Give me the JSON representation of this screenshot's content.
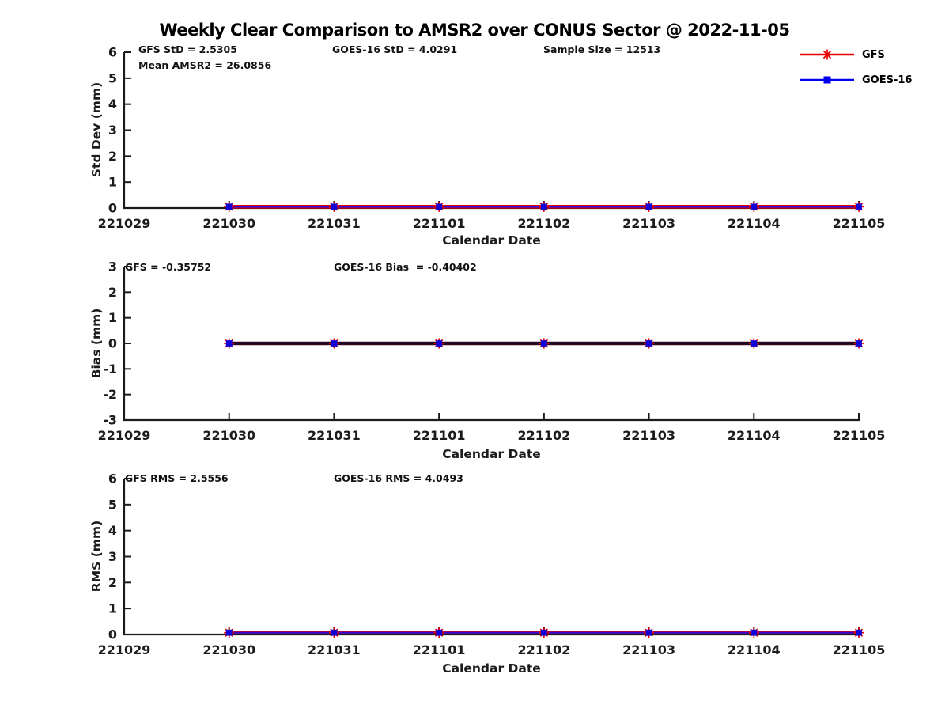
{
  "title": "Weekly Clear Comparison to AMSR2 over CONUS Sector @ 2022-11-05",
  "legend": {
    "position": "top-right",
    "items": [
      {
        "label": "GFS",
        "color": "#e80000",
        "marker": "asterisk"
      },
      {
        "label": "GOES-16",
        "color": "#0000ee",
        "marker": "square"
      }
    ]
  },
  "chart_data": {
    "type": "line",
    "xlabel": "Calendar Date",
    "x_categories": [
      "221029",
      "221030",
      "221031",
      "221101",
      "221102",
      "221103",
      "221104",
      "221105"
    ],
    "grid": false,
    "charts": [
      {
        "name": "std_dev",
        "ylabel": "Std Dev (mm)",
        "ylim": [
          0,
          6
        ],
        "yticks": [
          0,
          1,
          2,
          3,
          4,
          5,
          6
        ],
        "annotations": [
          {
            "text": "GFS StD = 2.5305"
          },
          {
            "text": "GOES-16 StD = 4.0291"
          },
          {
            "text": "Sample Size = 12513"
          },
          {
            "text": "Mean AMSR2 = 26.0856"
          }
        ],
        "line_colors": {
          "under": "#e80000",
          "over": "#2b08dc"
        },
        "series": [
          {
            "name": "GFS",
            "x": [
              "221030",
              "221031",
              "221101",
              "221102",
              "221103",
              "221104",
              "221105"
            ],
            "values": [
              0.05,
              0.05,
              0.05,
              0.05,
              0.05,
              0.05,
              0.05
            ]
          },
          {
            "name": "GOES-16",
            "x": [
              "221030",
              "221031",
              "221101",
              "221102",
              "221103",
              "221104",
              "221105"
            ],
            "values": [
              0.05,
              0.05,
              0.05,
              0.05,
              0.05,
              0.05,
              0.05
            ]
          }
        ]
      },
      {
        "name": "bias",
        "ylabel": "Bias (mm)",
        "ylim": [
          -3,
          3
        ],
        "yticks": [
          -3,
          -2,
          -1,
          0,
          1,
          2,
          3
        ],
        "annotations": [
          {
            "text": "GFS = -0.35752"
          },
          {
            "text": "GOES-16 Bias  = -0.40402"
          }
        ],
        "line_colors": {
          "under": "#3a0a20",
          "over": "#140828"
        },
        "series": [
          {
            "name": "GFS",
            "x": [
              "221030",
              "221031",
              "221101",
              "221102",
              "221103",
              "221104",
              "221105"
            ],
            "values": [
              0,
              0,
              0,
              0,
              0,
              0,
              0
            ]
          },
          {
            "name": "GOES-16",
            "x": [
              "221030",
              "221031",
              "221101",
              "221102",
              "221103",
              "221104",
              "221105"
            ],
            "values": [
              0,
              0,
              0,
              0,
              0,
              0,
              0
            ]
          }
        ]
      },
      {
        "name": "rms",
        "ylabel": "RMS (mm)",
        "ylim": [
          0,
          6
        ],
        "yticks": [
          0,
          1,
          2,
          3,
          4,
          5,
          6
        ],
        "annotations": [
          {
            "text": "GFS RMS = 2.5556"
          },
          {
            "text": "GOES-16 RMS = 4.0493"
          }
        ],
        "line_colors": {
          "under": "#e80000",
          "over": "#2b08dc"
        },
        "series": [
          {
            "name": "GFS",
            "x": [
              "221030",
              "221031",
              "221101",
              "221102",
              "221103",
              "221104",
              "221105"
            ],
            "values": [
              0.07,
              0.07,
              0.07,
              0.07,
              0.07,
              0.07,
              0.07
            ]
          },
          {
            "name": "GOES-16",
            "x": [
              "221030",
              "221031",
              "221101",
              "221102",
              "221103",
              "221104",
              "221105"
            ],
            "values": [
              0.07,
              0.07,
              0.07,
              0.07,
              0.07,
              0.07,
              0.07
            ]
          }
        ]
      }
    ],
    "summary_stats": {
      "gfs_std": "2.5305",
      "goes16_std": "4.0291",
      "sample_size": "12513",
      "mean_amsr2": "26.0856",
      "gfs_bias": "-0.35752",
      "goes16_bias": "-0.40402",
      "gfs_rms": "2.5556",
      "goes16_rms": "4.0493"
    },
    "marker_colors": {
      "asterisk": "#e80000",
      "square": "#1002d6"
    },
    "axis_color": "#1c1c1c"
  }
}
